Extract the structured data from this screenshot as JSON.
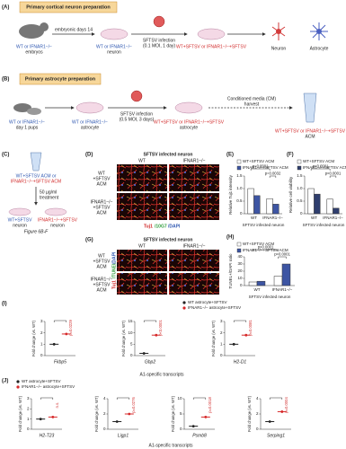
{
  "panels": {
    "a": {
      "label": "(A)",
      "title": "Primary cortical neuron preparation",
      "mouse": [
        "WT or IFNAR1−/−",
        "embryos"
      ],
      "step": "embryonic days 14",
      "neuron": [
        "WT or IFNAR1−/−",
        "neuron"
      ],
      "infection": [
        "SFTSV infection",
        "(0.1 MOI, 1 day)"
      ],
      "infected": "WT+SFTSV or IFNAR1−/−+SFTSV",
      "cells": [
        "Neuron",
        "Astrocyte"
      ]
    },
    "b": {
      "label": "(B)",
      "title": "Primary astrocyte preparation",
      "mouse": [
        "WT or IFNAR1−/−",
        "day 1 pups"
      ],
      "astrocyte": [
        "WT or IFNAR1−/−",
        "astrocyte"
      ],
      "infection": [
        "SFTSV infection",
        "(0.5 MOI, 3 days)"
      ],
      "infected": [
        "WT+SFTSV or IFNAR1−/−+SFTSV",
        "astrocyte"
      ],
      "cm": [
        "Conditioned media (CM)",
        "harvest"
      ],
      "acm": [
        "WT+SFTSV or IFNAR1−/−+SFTSV",
        "ACM"
      ]
    },
    "c": {
      "label": "(C)",
      "acm": [
        "WT+SFTSV ACM or",
        "IFNAR1−/−+SFTSV ACM"
      ],
      "treatment": [
        "50 µg/ml",
        "treatment"
      ],
      "neurons": [
        [
          "WT+SFTSV",
          "neuron"
        ],
        [
          "IFNAR1−/−+SFTSV",
          "neuron"
        ]
      ],
      "ref": "Figure 6B-F"
    },
    "d": {
      "label": "(D)",
      "title": "SFTSV infected neuron",
      "columns": [
        "WT",
        "IFNAR1−/−"
      ],
      "rows": [
        [
          "WT",
          "+SFTSV",
          "ACM"
        ],
        [
          "IFNAR1−/−",
          "+SFTSV",
          "ACM"
        ]
      ],
      "stain": [
        "Tuj1",
        "/10G7",
        "/DAPI"
      ]
    },
    "g": {
      "label": "(G)",
      "title": "SFTSV infected neuron",
      "columns": [
        "WT",
        "IFNAR1−/−"
      ],
      "rows": [
        [
          "WT",
          "+SFTSV",
          "ACM"
        ],
        [
          "IFNAR1−/−",
          "+SFTSV",
          "ACM"
        ]
      ],
      "stain": [
        "Tuj1",
        "/TUNEL",
        "/DAPI"
      ]
    }
  },
  "charts": [
    {
      "label": "(E)",
      "type": "bar",
      "ylabel": "Relative Tuj1 intensity",
      "xlabel": "SFTSV infected neuron",
      "categories": [
        "WT",
        "IFNAR1−/−"
      ],
      "series": [
        {
          "name": "WT+SFTSV ACM",
          "color": "#ffffff",
          "values": [
            1.0,
            0.6
          ]
        },
        {
          "name": "IFNAR1−/−+SFTSV ACM",
          "color": "#3d55a3",
          "values": [
            0.72,
            0.38
          ]
        }
      ],
      "ylim": [
        0,
        1.5
      ],
      "yticks": [
        0,
        0.5,
        {
          "value": 1,
          "label": "1.0"
        },
        1.5
      ],
      "annotations": [
        "p=0.0001",
        "p=0.0032"
      ]
    },
    {
      "label": "(F)",
      "type": "bar",
      "ylabel": "Relative cell viability",
      "xlabel": "SFTSV infected neuron",
      "categories": [
        "WT",
        "IFNAR1−/−"
      ],
      "series": [
        {
          "name": "WT+SFTSV ACM",
          "color": "#ffffff",
          "values": [
            1.0,
            0.58
          ]
        },
        {
          "name": "IFNAR1−/−+SFTSV ACM",
          "color": "#2f3e6e",
          "values": [
            0.78,
            0.22
          ]
        }
      ],
      "ylim": [
        0,
        1.5
      ],
      "yticks": [
        0,
        0.5,
        {
          "value": 1,
          "label": "1.0"
        },
        1.5
      ],
      "annotations": [
        "p<0.0001",
        "p<0.0001"
      ]
    },
    {
      "label": "(H)",
      "type": "bar",
      "ylabel": "TUNEL+/DAPI ratio",
      "xlabel": "SFTSV infected neuron",
      "categories": [
        "WT",
        "IFNAR1−/−"
      ],
      "series": [
        {
          "name": "WT+SFTSV ACM",
          "color": "#ffffff",
          "values": [
            5,
            13
          ]
        },
        {
          "name": "IFNAR1−/−+SFTSV ACM",
          "color": "#3d55a3",
          "values": [
            6,
            30
          ]
        }
      ],
      "ylim": [
        0,
        40
      ],
      "yticks": [
        0,
        10,
        20,
        30,
        40
      ],
      "annotations": [
        "p<0.0001",
        "p<0.0001"
      ]
    }
  ],
  "genes": [
    {
      "label": "(I)",
      "series": [
        {
          "name": "WT astrocyte+SFTSV",
          "color": "#222222"
        },
        {
          "name": "IFNAR1−/− astrocyte+SFTSV",
          "color": "#d62728"
        }
      ],
      "ylabel": "Fold change (vs. WT)",
      "xlabel": "A1-specific transcripts",
      "plots": [
        {
          "gene": "Fkbp5",
          "p": "p=0.0229",
          "ylim": [
            0,
            3
          ],
          "yticks": [
            0,
            1,
            2,
            3
          ],
          "values": [
            1,
            1.9
          ]
        },
        {
          "gene": "Gbp2",
          "p": "p<0.0001",
          "ylim": [
            0,
            15
          ],
          "yticks": [
            0,
            5,
            10,
            15
          ],
          "values": [
            1,
            9
          ]
        },
        {
          "gene": "H2-D1",
          "p": "p=0.0081",
          "ylim": [
            0,
            3
          ],
          "yticks": [
            0,
            1,
            2,
            3
          ],
          "values": [
            1,
            1.8
          ]
        }
      ]
    },
    {
      "label": "(J)",
      "series": [
        {
          "name": "WT astrocyte+SFTSV",
          "color": "#222222"
        },
        {
          "name": "IFNAR1−/− astrocyte+SFTSV",
          "color": "#d62728"
        }
      ],
      "ylabel": "Fold change (vs. WT)",
      "xlabel": "A1-specific transcripts",
      "plots": [
        {
          "gene": "H2-T23",
          "p": "n.s.",
          "ylim": [
            0,
            3
          ],
          "yticks": [
            0,
            1,
            2,
            3
          ],
          "values": [
            1,
            1.2
          ]
        },
        {
          "gene": "Ligp1",
          "p": "p=0.0276",
          "ylim": [
            0,
            4
          ],
          "yticks": [
            0,
            2,
            4
          ],
          "values": [
            1,
            2
          ]
        },
        {
          "gene": "Psmb8",
          "p": "p=0.0018",
          "ylim": [
            0,
            10
          ],
          "yticks": [
            0,
            5,
            10
          ],
          "values": [
            1,
            4
          ]
        },
        {
          "gene": "Serping1",
          "p": "p=0.0004",
          "ylim": [
            0,
            4
          ],
          "yticks": [
            0,
            2,
            4
          ],
          "values": [
            1,
            2.3
          ]
        }
      ]
    }
  ]
}
